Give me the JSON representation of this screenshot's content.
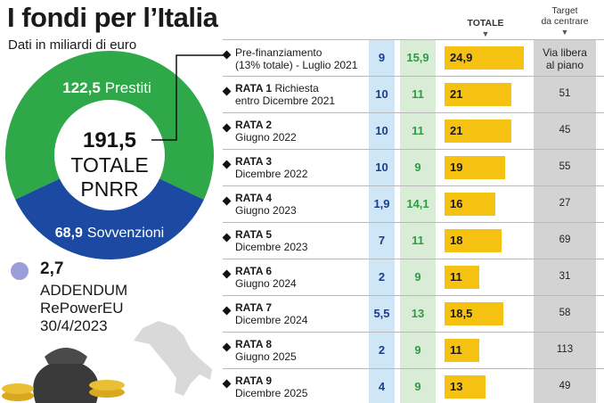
{
  "header": {
    "title": "I fondi per l’Italia",
    "subtitle": "Dati in miliardi di euro"
  },
  "donut": {
    "prestiti_value": "122,5",
    "prestiti_label": "Prestiti",
    "sovvenzioni_value": "68,9",
    "sovvenzioni_label": "Sovvenzioni",
    "total_value": "191,5",
    "total_line1": "TOTALE",
    "total_line2": "PNRR",
    "colors": {
      "prestiti": "#2fa84a",
      "sovvenzioni": "#1c4aa3",
      "addendum": "#9b9fd8"
    }
  },
  "addendum": {
    "value": "2,7",
    "line1": "ADDENDUM",
    "line2": "RePowerEU",
    "line3": "30/4/2023"
  },
  "columns": {
    "totale": "TOTALE",
    "target_line1": "Target",
    "target_line2": "da centrare"
  },
  "chart_data": {
    "type": "table",
    "title": "I fondi per l’Italia",
    "subtitle": "Dati in miliardi di euro",
    "rows": [
      {
        "name": "",
        "desc1": "Pre-finanziamento",
        "desc2": "(13% totale) - Luglio 2021",
        "sovvenzioni": "9",
        "prestiti": "15,9",
        "totale": "24,9",
        "total_value": 24.9,
        "target": "Via libera al piano",
        "target_line1": "Via libera",
        "target_line2": "al piano"
      },
      {
        "name": "RATA 1",
        "desc1": "Richiesta",
        "desc2": "entro Dicembre 2021",
        "sovvenzioni": "10",
        "prestiti": "11",
        "totale": "21",
        "total_value": 21,
        "target": "51"
      },
      {
        "name": "RATA 2",
        "desc1": "",
        "desc2": "Giugno 2022",
        "sovvenzioni": "10",
        "prestiti": "11",
        "totale": "21",
        "total_value": 21,
        "target": "45"
      },
      {
        "name": "RATA 3",
        "desc1": "",
        "desc2": "Dicembre 2022",
        "sovvenzioni": "10",
        "prestiti": "9",
        "totale": "19",
        "total_value": 19,
        "target": "55"
      },
      {
        "name": "RATA 4",
        "desc1": "",
        "desc2": "Giugno 2023",
        "sovvenzioni": "1,9",
        "prestiti": "14,1",
        "totale": "16",
        "total_value": 16,
        "target": "27"
      },
      {
        "name": "RATA 5",
        "desc1": "",
        "desc2": "Dicembre 2023",
        "sovvenzioni": "7",
        "prestiti": "11",
        "totale": "18",
        "total_value": 18,
        "target": "69"
      },
      {
        "name": "RATA 6",
        "desc1": "",
        "desc2": "Giugno 2024",
        "sovvenzioni": "2",
        "prestiti": "9",
        "totale": "11",
        "total_value": 11,
        "target": "31"
      },
      {
        "name": "RATA 7",
        "desc1": "",
        "desc2": "Dicembre 2024",
        "sovvenzioni": "5,5",
        "prestiti": "13",
        "totale": "18,5",
        "total_value": 18.5,
        "target": "58"
      },
      {
        "name": "RATA 8",
        "desc1": "",
        "desc2": "Giugno 2025",
        "sovvenzioni": "2",
        "prestiti": "9",
        "totale": "11",
        "total_value": 11,
        "target": "113"
      },
      {
        "name": "RATA 9",
        "desc1": "",
        "desc2": "Dicembre 2025",
        "sovvenzioni": "4",
        "prestiti": "9",
        "totale": "13",
        "total_value": 13,
        "target": "49"
      }
    ],
    "colors": {
      "bar": "#f5c212",
      "sovvenzioni_band": "#cfe6f7",
      "prestiti_band": "#d9ecd6",
      "target_band": "#d3d3d3"
    }
  }
}
